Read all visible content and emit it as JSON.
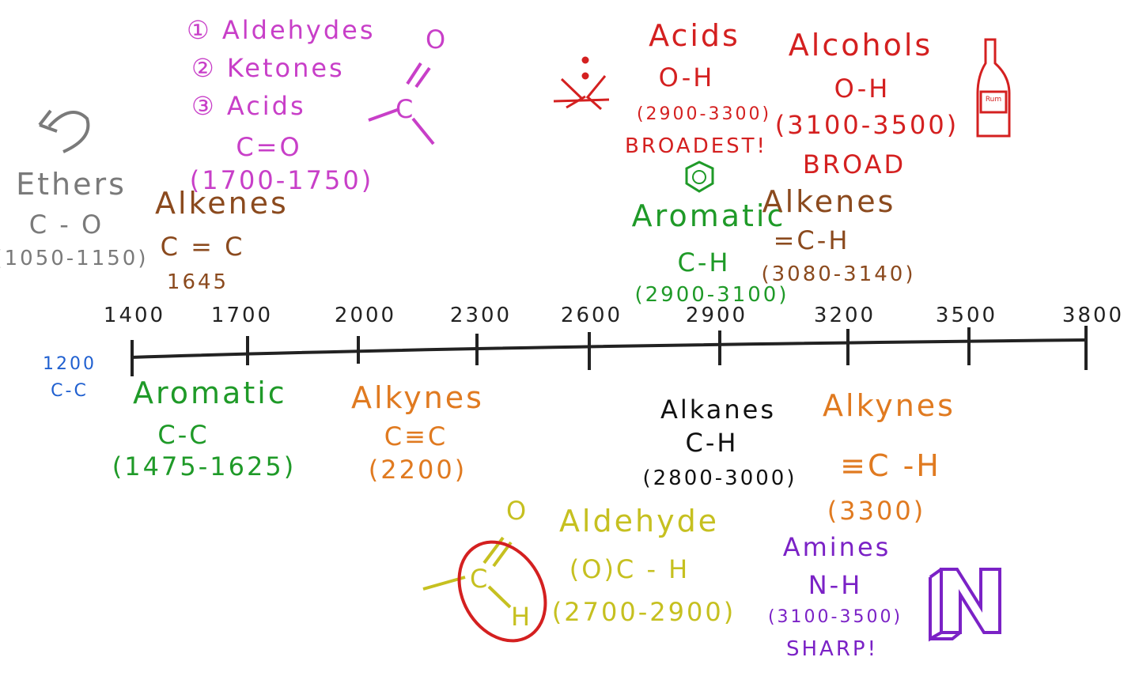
{
  "colors": {
    "axis": "#222222",
    "ethers": "#7a7a7a",
    "carbonyl": "#c83fc8",
    "acids": "#d42020",
    "alcohols": "#d42020",
    "alkenes": "#8b4a1e",
    "aromatic": "#1f9a28",
    "alkynes": "#e07a20",
    "alkanes": "#111111",
    "aldehyde": "#c6c020",
    "amines": "#7b22c6",
    "single_cc": "#2060d0"
  },
  "axis": {
    "ticks": [
      "1400",
      "1700",
      "2000",
      "2300",
      "2600",
      "2900",
      "3200",
      "3500",
      "3800"
    ]
  },
  "single_cc": {
    "value": "1200",
    "bond": "C-C"
  },
  "ethers": {
    "name": "Ethers",
    "bond": "C - O",
    "range": "(1050-1150)"
  },
  "carbonyl": {
    "items": [
      "① Aldehydes",
      "② Ketones",
      "③ Acids"
    ],
    "bond": "C=O",
    "range": "(1700-1750)"
  },
  "alkenes_low": {
    "name": "Alkenes",
    "bond": "C = C",
    "value": "1645"
  },
  "acids": {
    "name": "Acids",
    "bond": "O-H",
    "range": "(2900-3300)",
    "note": "BROADEST!"
  },
  "alcohols": {
    "name": "Alcohols",
    "bond": "O-H",
    "range": "(3100-3500)",
    "note": "BROAD"
  },
  "aromatic_high": {
    "name": "Aromatic",
    "bond": "C-H",
    "range": "(2900-3100)"
  },
  "alkenes_high": {
    "name": "Alkenes",
    "bond": "=C-H",
    "range": "(3080-3140)"
  },
  "aromatic_low": {
    "name": "Aromatic",
    "bond": "C-C",
    "range": "(1475-1625)"
  },
  "alkynes_low": {
    "name": "Alkynes",
    "bond": "C≡C",
    "range": "(2200)"
  },
  "alkanes": {
    "name": "Alkanes",
    "bond": "C-H",
    "range": "(2800-3000)"
  },
  "alkynes_high": {
    "name": "Alkynes",
    "bond": "≡C -H",
    "range": "(3300)"
  },
  "aldehyde": {
    "name": "Aldehyde",
    "bond": "(O)C - H",
    "range": "(2700-2900)"
  },
  "amines": {
    "name": "Amines",
    "bond": "N-H",
    "range": "(3100-3500)",
    "note": "SHARP!"
  },
  "drawings": {
    "carbonyl_o": "O",
    "carbonyl_c": "C",
    "aldehyde_o": "O",
    "aldehyde_c": "C",
    "aldehyde_h": "H",
    "bottle_label": "Rum",
    "n_letter": "N"
  }
}
